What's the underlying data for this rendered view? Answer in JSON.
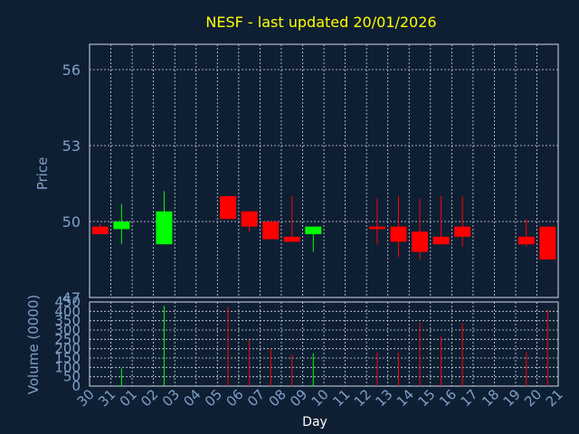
{
  "chart_data": [
    {
      "type": "candlestick",
      "title": "NESF - last updated 20/01/2026",
      "ylabel": "Price",
      "ylim": [
        47,
        57
      ],
      "yticks": [
        47,
        50,
        53,
        56
      ],
      "grid": true,
      "x": [
        "30",
        "31",
        "01",
        "02",
        "03",
        "04",
        "05",
        "06",
        "07",
        "08",
        "09",
        "10",
        "11",
        "12",
        "13",
        "14",
        "15",
        "16",
        "17",
        "18",
        "19",
        "20"
      ],
      "candles": [
        {
          "day": "30",
          "open": 49.8,
          "high": 49.9,
          "low": 49.5,
          "close": 49.5
        },
        {
          "day": "31",
          "open": 49.7,
          "high": 50.7,
          "low": 49.1,
          "close": 50.0
        },
        {
          "day": "02",
          "open": 49.1,
          "high": 51.2,
          "low": 49.1,
          "close": 50.4
        },
        {
          "day": "05",
          "open": 51.0,
          "high": 51.0,
          "low": 50.1,
          "close": 50.1
        },
        {
          "day": "06",
          "open": 50.4,
          "high": 50.4,
          "low": 49.6,
          "close": 49.8
        },
        {
          "day": "07",
          "open": 50.0,
          "high": 50.0,
          "low": 49.3,
          "close": 49.3
        },
        {
          "day": "08",
          "open": 49.4,
          "high": 51.0,
          "low": 49.2,
          "close": 49.2
        },
        {
          "day": "09",
          "open": 49.5,
          "high": 49.8,
          "low": 48.8,
          "close": 49.8
        },
        {
          "day": "12",
          "open": 49.8,
          "high": 50.9,
          "low": 49.1,
          "close": 49.7
        },
        {
          "day": "13",
          "open": 49.8,
          "high": 51.0,
          "low": 48.6,
          "close": 49.2
        },
        {
          "day": "14",
          "open": 49.6,
          "high": 50.9,
          "low": 48.5,
          "close": 48.8
        },
        {
          "day": "15",
          "open": 49.4,
          "high": 51.0,
          "low": 49.1,
          "close": 49.1
        },
        {
          "day": "16",
          "open": 49.8,
          "high": 51.0,
          "low": 49.0,
          "close": 49.4
        },
        {
          "day": "19",
          "open": 49.4,
          "high": 50.1,
          "low": 49.0,
          "close": 49.1
        },
        {
          "day": "20",
          "open": 49.8,
          "high": 49.8,
          "low": 48.5,
          "close": 48.5
        }
      ],
      "colors": {
        "up": "#00ff00",
        "down": "#ff0000",
        "title": "#ffff00",
        "axis_text": "#7f9fc8",
        "grid": "#d0d8e8",
        "background": "#0f1f33"
      }
    },
    {
      "type": "bar",
      "ylabel": "Volume (0000)",
      "xlabel": "Day",
      "ylim": [
        0,
        450
      ],
      "yticks": [
        0,
        50,
        100,
        150,
        200,
        250,
        300,
        350,
        400,
        450
      ],
      "grid": true,
      "x": [
        "30",
        "31",
        "01",
        "02",
        "03",
        "04",
        "05",
        "06",
        "07",
        "08",
        "09",
        "10",
        "11",
        "12",
        "13",
        "14",
        "15",
        "16",
        "17",
        "18",
        "19",
        "20",
        "21"
      ],
      "bars": [
        {
          "day": "31",
          "value": 95,
          "direction": "up"
        },
        {
          "day": "02",
          "value": 430,
          "direction": "up"
        },
        {
          "day": "05",
          "value": 425,
          "direction": "down"
        },
        {
          "day": "06",
          "value": 245,
          "direction": "down"
        },
        {
          "day": "07",
          "value": 200,
          "direction": "down"
        },
        {
          "day": "08",
          "value": 170,
          "direction": "down"
        },
        {
          "day": "09",
          "value": 175,
          "direction": "up"
        },
        {
          "day": "12",
          "value": 180,
          "direction": "down"
        },
        {
          "day": "13",
          "value": 180,
          "direction": "down"
        },
        {
          "day": "14",
          "value": 340,
          "direction": "down"
        },
        {
          "day": "15",
          "value": 265,
          "direction": "down"
        },
        {
          "day": "16",
          "value": 335,
          "direction": "down"
        },
        {
          "day": "19",
          "value": 180,
          "direction": "down"
        },
        {
          "day": "20",
          "value": 410,
          "direction": "down"
        }
      ]
    }
  ]
}
